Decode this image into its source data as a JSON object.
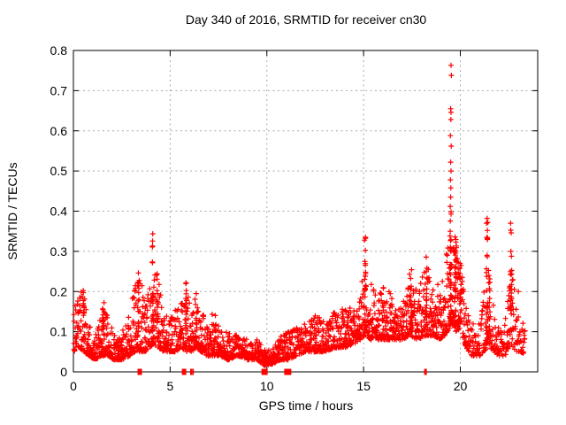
{
  "chart_data": {
    "type": "scatter",
    "title": "Day 340 of 2016, SRMTID for receiver cn30",
    "xlabel": "GPS time / hours",
    "ylabel": "SRMTID / TECUs",
    "xlim": [
      0,
      24
    ],
    "ylim": [
      0,
      0.8
    ],
    "xticks": [
      0,
      5,
      10,
      15,
      20
    ],
    "xtick_labels": [
      "0",
      "5",
      "10",
      "15",
      "20"
    ],
    "yticks": [
      0,
      0.1,
      0.2,
      0.3,
      0.4,
      0.5,
      0.6,
      0.7,
      0.8
    ],
    "ytick_labels": [
      "0",
      "0.1",
      "0.2",
      "0.3",
      "0.4",
      "0.5",
      "0.6",
      "0.7",
      "0.8"
    ],
    "grid": true,
    "legend": "none",
    "series_name": "SRMTID",
    "marker": "plus",
    "marker_color": "#ff0000",
    "grid_color": "#a8a8a8",
    "border_color": "#000000",
    "seed": 1340,
    "band_profile": [
      [
        0.0,
        0.05,
        0.17,
        3
      ],
      [
        0.3,
        0.06,
        0.19,
        3
      ],
      [
        0.55,
        0.05,
        0.21,
        3
      ],
      [
        0.8,
        0.04,
        0.12,
        3
      ],
      [
        1.1,
        0.03,
        0.08,
        3
      ],
      [
        1.5,
        0.04,
        0.17,
        3
      ],
      [
        1.8,
        0.04,
        0.14,
        3
      ],
      [
        2.1,
        0.03,
        0.09,
        3
      ],
      [
        2.5,
        0.03,
        0.1,
        3
      ],
      [
        2.9,
        0.04,
        0.16,
        3
      ],
      [
        3.2,
        0.05,
        0.22,
        3
      ],
      [
        3.45,
        0.05,
        0.24,
        3
      ],
      [
        3.7,
        0.05,
        0.17,
        3
      ],
      [
        3.95,
        0.06,
        0.22,
        3
      ],
      [
        4.15,
        0.07,
        0.28,
        3
      ],
      [
        4.4,
        0.06,
        0.23,
        3
      ],
      [
        4.7,
        0.05,
        0.15,
        3
      ],
      [
        5.0,
        0.05,
        0.13,
        3
      ],
      [
        5.3,
        0.05,
        0.16,
        3
      ],
      [
        5.6,
        0.06,
        0.19,
        3
      ],
      [
        5.85,
        0.05,
        0.21,
        3
      ],
      [
        6.1,
        0.05,
        0.16,
        3
      ],
      [
        6.35,
        0.06,
        0.19,
        3
      ],
      [
        6.6,
        0.05,
        0.16,
        3
      ],
      [
        6.9,
        0.04,
        0.12,
        3
      ],
      [
        7.3,
        0.04,
        0.16,
        3
      ],
      [
        7.6,
        0.04,
        0.1,
        3
      ],
      [
        8.0,
        0.03,
        0.1,
        3
      ],
      [
        8.5,
        0.04,
        0.09,
        3
      ],
      [
        9.0,
        0.03,
        0.08,
        3
      ],
      [
        9.5,
        0.03,
        0.08,
        3
      ],
      [
        9.9,
        0.015,
        0.055,
        3
      ],
      [
        10.3,
        0.02,
        0.06,
        3
      ],
      [
        10.7,
        0.03,
        0.09,
        3
      ],
      [
        11.1,
        0.03,
        0.1,
        3
      ],
      [
        11.5,
        0.04,
        0.11,
        3
      ],
      [
        12.0,
        0.05,
        0.12,
        3
      ],
      [
        12.5,
        0.05,
        0.14,
        3
      ],
      [
        13.0,
        0.05,
        0.13,
        3
      ],
      [
        13.5,
        0.06,
        0.15,
        3
      ],
      [
        14.0,
        0.06,
        0.16,
        3
      ],
      [
        14.5,
        0.07,
        0.16,
        3
      ],
      [
        14.8,
        0.08,
        0.18,
        3
      ],
      [
        15.1,
        0.09,
        0.27,
        3
      ],
      [
        15.4,
        0.08,
        0.22,
        3
      ],
      [
        15.8,
        0.08,
        0.2,
        3
      ],
      [
        16.2,
        0.08,
        0.21,
        3
      ],
      [
        16.6,
        0.08,
        0.18,
        3
      ],
      [
        17.0,
        0.08,
        0.17,
        3
      ],
      [
        17.4,
        0.09,
        0.25,
        3
      ],
      [
        17.8,
        0.08,
        0.2,
        3
      ],
      [
        18.2,
        0.09,
        0.27,
        3
      ],
      [
        18.6,
        0.09,
        0.24,
        3
      ],
      [
        19.0,
        0.08,
        0.22,
        3
      ],
      [
        19.35,
        0.1,
        0.32,
        3
      ],
      [
        19.55,
        0.12,
        0.38,
        4
      ],
      [
        19.8,
        0.1,
        0.34,
        4
      ],
      [
        20.05,
        0.1,
        0.27,
        3
      ],
      [
        20.3,
        0.06,
        0.16,
        3
      ],
      [
        20.6,
        0.04,
        0.12,
        2
      ],
      [
        21.0,
        0.04,
        0.12,
        2
      ],
      [
        21.4,
        0.06,
        0.28,
        3
      ],
      [
        21.7,
        0.05,
        0.17,
        2
      ],
      [
        22.0,
        0.04,
        0.12,
        2
      ],
      [
        22.3,
        0.04,
        0.12,
        2
      ],
      [
        22.6,
        0.07,
        0.28,
        3
      ],
      [
        22.9,
        0.05,
        0.17,
        2
      ],
      [
        23.1,
        0.05,
        0.14,
        2
      ],
      [
        23.35,
        0.04,
        0.11,
        2
      ]
    ],
    "spike_columns": [
      [
        0.55,
        0.05,
        0.22,
        8
      ],
      [
        1.55,
        0.06,
        0.21,
        10
      ],
      [
        3.35,
        0.06,
        0.26,
        14
      ],
      [
        4.1,
        0.1,
        0.345,
        22
      ],
      [
        4.35,
        0.08,
        0.24,
        10
      ],
      [
        5.8,
        0.06,
        0.225,
        12
      ],
      [
        6.35,
        0.08,
        0.21,
        8
      ],
      [
        14.2,
        0.06,
        0.17,
        6
      ],
      [
        15.08,
        0.1,
        0.335,
        18
      ],
      [
        16.0,
        0.08,
        0.21,
        8
      ],
      [
        17.45,
        0.1,
        0.285,
        12
      ],
      [
        18.25,
        0.1,
        0.3,
        14
      ],
      [
        19.5,
        0.12,
        0.4,
        26
      ],
      [
        19.75,
        0.12,
        0.35,
        20
      ],
      [
        20.0,
        0.1,
        0.28,
        10
      ],
      [
        21.38,
        0.08,
        0.385,
        20
      ],
      [
        21.5,
        0.08,
        0.3,
        12
      ],
      [
        22.62,
        0.1,
        0.375,
        18
      ]
    ],
    "outlier_points": [
      [
        19.52,
        0.763
      ],
      [
        19.54,
        0.738
      ],
      [
        19.5,
        0.655
      ],
      [
        19.52,
        0.646
      ],
      [
        19.51,
        0.628
      ],
      [
        19.49,
        0.588
      ],
      [
        19.53,
        0.562
      ],
      [
        19.5,
        0.522
      ],
      [
        19.52,
        0.5
      ],
      [
        19.49,
        0.478
      ],
      [
        19.51,
        0.458
      ],
      [
        19.5,
        0.435
      ],
      [
        19.48,
        0.412
      ],
      [
        19.52,
        0.398
      ],
      [
        21.42,
        0.372
      ],
      [
        21.4,
        0.352
      ],
      [
        22.6,
        0.37
      ],
      [
        22.63,
        0.346
      ],
      [
        15.1,
        0.335
      ],
      [
        23.0,
        0.2
      ]
    ],
    "zero_markers": [
      {
        "t": 3.43,
        "w": 5
      },
      {
        "t": 5.72,
        "w": 5
      },
      {
        "t": 6.08,
        "w": 2
      },
      {
        "t": 6.18,
        "w": 2
      },
      {
        "t": 9.88,
        "w": 7
      },
      {
        "t": 11.08,
        "w": 8
      },
      {
        "t": 18.2,
        "w": 3
      }
    ]
  }
}
